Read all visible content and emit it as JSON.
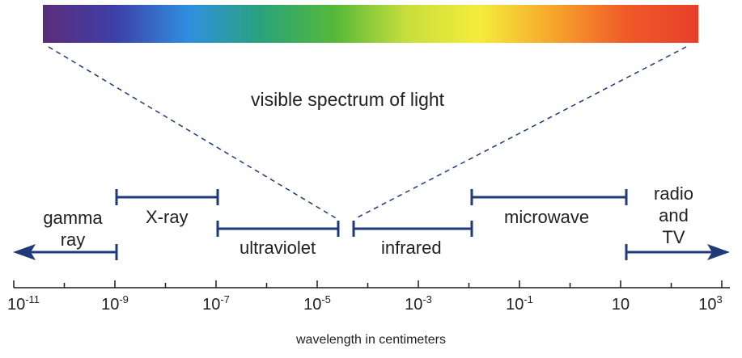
{
  "spectrum": {
    "caption": "visible spectrum of light",
    "colors": [
      "#5c2d7a",
      "#3d3fa8",
      "#2f8fe0",
      "#2aa37a",
      "#55b83a",
      "#c8de3c",
      "#f5ec3a",
      "#f6a62c",
      "#f05a28",
      "#e8402a"
    ]
  },
  "axis": {
    "title": "wavelength in centimeters",
    "ticks": [
      {
        "base": "10",
        "exp": "-11"
      },
      {
        "base": "10",
        "exp": "-9"
      },
      {
        "base": "10",
        "exp": "-7"
      },
      {
        "base": "10",
        "exp": "-5"
      },
      {
        "base": "10",
        "exp": "-3"
      },
      {
        "base": "10",
        "exp": "-1"
      },
      {
        "base": "10",
        "exp": ""
      },
      {
        "base": "10",
        "exp": "3"
      }
    ]
  },
  "bands": {
    "gamma": "gamma\nray",
    "xray": "X-ray",
    "ultraviolet": "ultraviolet",
    "infrared": "infrared",
    "microwave": "microwave",
    "radio": "radio\nand\nTV"
  },
  "line_color": "#1f3a7a"
}
